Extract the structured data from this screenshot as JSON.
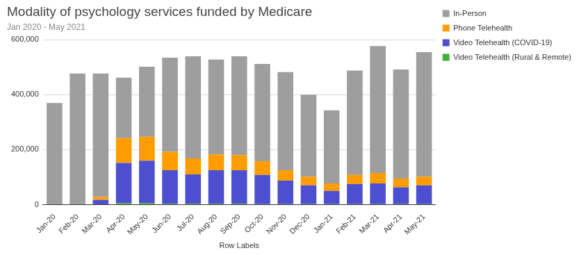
{
  "chart_data": {
    "type": "bar",
    "title": "Modality of psychology services funded by Medicare",
    "subtitle": "Jan 2020 - May 2021",
    "x_label": "Row Labels",
    "categories": [
      "Jan-20",
      "Feb-20",
      "Mar-20",
      "Apr-20",
      "May-20",
      "Jun-20",
      "Jul-20",
      "Aug-20",
      "Sep-20",
      "Oct-20",
      "Nov-20",
      "Dec-20",
      "Jan-21",
      "Feb-21",
      "Mar-21",
      "Apr-21",
      "May-21"
    ],
    "series": [
      {
        "name": "In-Person",
        "color": "#9e9e9e",
        "values": [
          370000,
          477000,
          449000,
          220000,
          255000,
          343000,
          372000,
          345000,
          360000,
          354000,
          357000,
          298000,
          266000,
          380000,
          462000,
          397000,
          453000
        ]
      },
      {
        "name": "Phone Telehealth",
        "color": "#ff9d00",
        "values": [
          0,
          0,
          11000,
          90000,
          87000,
          67000,
          58000,
          58000,
          55000,
          50000,
          38000,
          32000,
          27000,
          33000,
          38000,
          32000,
          32000
        ]
      },
      {
        "name": "Video Telehealth (COVID-19)",
        "color": "#4d4fd1",
        "values": [
          0,
          0,
          17000,
          147000,
          155000,
          122000,
          107000,
          122000,
          122000,
          106000,
          85000,
          68000,
          48000,
          73000,
          75000,
          61000,
          68000
        ]
      },
      {
        "name": "Video Telehealth (Rural & Remote)",
        "color": "#43b03a",
        "values": [
          0,
          0,
          0,
          5000,
          5000,
          3000,
          3000,
          3000,
          3000,
          2000,
          2000,
          2000,
          2000,
          2000,
          2000,
          2000,
          2000
        ]
      }
    ],
    "stacked": true,
    "ylim": [
      0,
      600000
    ],
    "yticks": [
      0,
      {
        "value": 200000,
        "label": "200,000"
      },
      {
        "value": 400000,
        "label": "400,000"
      },
      {
        "value": 600000,
        "label": "600,000"
      }
    ],
    "grid": true,
    "legend": "right"
  }
}
